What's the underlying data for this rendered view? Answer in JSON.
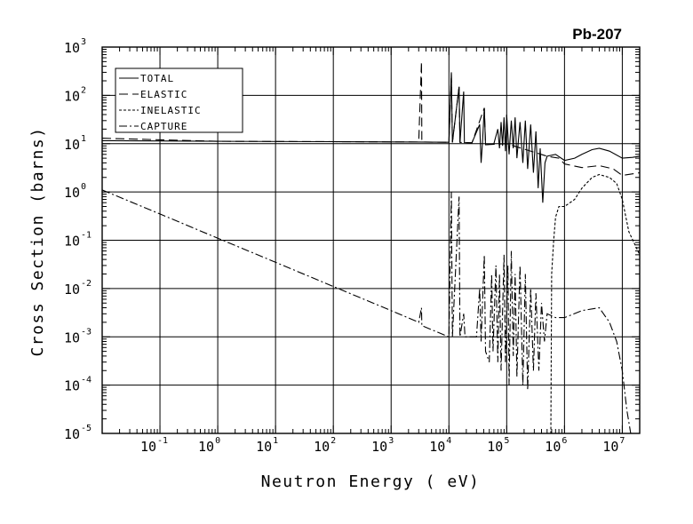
{
  "chart_data": {
    "type": "line",
    "title": "Pb-207",
    "xlabel": "Neutron Energy ( eV)",
    "ylabel": "Cross Section (barns)",
    "x_scale": "log",
    "y_scale": "log",
    "xlim": [
      0.01,
      20000000
    ],
    "ylim": [
      1e-05,
      1000
    ],
    "grid": true,
    "legend_position": "top-left",
    "x_ticks": [
      {
        "value": 0.1,
        "base": "10",
        "exp": "-1"
      },
      {
        "value": 1,
        "base": "10",
        "exp": "0"
      },
      {
        "value": 10,
        "base": "10",
        "exp": "1"
      },
      {
        "value": 100,
        "base": "10",
        "exp": "2"
      },
      {
        "value": 1000,
        "base": "10",
        "exp": "3"
      },
      {
        "value": 10000,
        "base": "10",
        "exp": "4"
      },
      {
        "value": 100000,
        "base": "10",
        "exp": "5"
      },
      {
        "value": 1000000,
        "base": "10",
        "exp": "6"
      },
      {
        "value": 10000000,
        "base": "10",
        "exp": "7"
      }
    ],
    "y_ticks": [
      {
        "value": 1e-05,
        "base": "10",
        "exp": "-5"
      },
      {
        "value": 0.0001,
        "base": "10",
        "exp": "-4"
      },
      {
        "value": 0.001,
        "base": "10",
        "exp": "-3"
      },
      {
        "value": 0.01,
        "base": "10",
        "exp": "-2"
      },
      {
        "value": 0.1,
        "base": "10",
        "exp": "-1"
      },
      {
        "value": 1,
        "base": "10",
        "exp": "0"
      },
      {
        "value": 10,
        "base": "10",
        "exp": "1"
      },
      {
        "value": 100,
        "base": "10",
        "exp": "2"
      },
      {
        "value": 1000,
        "base": "10",
        "exp": "3"
      }
    ],
    "series": [
      {
        "name": "TOTAL",
        "dash": "solid",
        "points": [
          [
            0.01,
            11.5
          ],
          [
            1,
            11.2
          ],
          [
            100,
            11.0
          ],
          [
            3000,
            10.8
          ],
          [
            10000,
            10.7
          ],
          [
            11000,
            300
          ],
          [
            11500,
            10.6
          ],
          [
            15000,
            150
          ],
          [
            15500,
            10.6
          ],
          [
            18000,
            120
          ],
          [
            18500,
            10.5
          ],
          [
            25000,
            10.4
          ],
          [
            34000,
            25
          ],
          [
            36000,
            4
          ],
          [
            38000,
            10.2
          ],
          [
            41000,
            55
          ],
          [
            43000,
            9.5
          ],
          [
            60000,
            10.0
          ],
          [
            70000,
            20
          ],
          [
            75000,
            8
          ],
          [
            80000,
            28
          ],
          [
            85000,
            9
          ],
          [
            90000,
            35
          ],
          [
            95000,
            7
          ],
          [
            100000,
            40
          ],
          [
            110000,
            6
          ],
          [
            120000,
            30
          ],
          [
            130000,
            8
          ],
          [
            140000,
            35
          ],
          [
            150000,
            5
          ],
          [
            170000,
            28
          ],
          [
            190000,
            4
          ],
          [
            210000,
            30
          ],
          [
            230000,
            3
          ],
          [
            260000,
            25
          ],
          [
            290000,
            2.5
          ],
          [
            320000,
            18
          ],
          [
            350000,
            1.2
          ],
          [
            380000,
            8
          ],
          [
            420000,
            0.6
          ],
          [
            460000,
            4
          ],
          [
            500000,
            5.5
          ],
          [
            700000,
            6.0
          ],
          [
            1000000,
            4.5
          ],
          [
            1500000,
            5.0
          ],
          [
            2000000,
            6.0
          ],
          [
            3000000,
            7.5
          ],
          [
            4000000,
            8.0
          ],
          [
            6000000,
            7.0
          ],
          [
            10000000,
            5.0
          ],
          [
            15000000,
            5.2
          ],
          [
            20000000,
            5.5
          ]
        ]
      },
      {
        "name": "ELASTIC",
        "dash": "long-dash",
        "points": [
          [
            0.01,
            13.0
          ],
          [
            0.1,
            12.0
          ],
          [
            1,
            11.2
          ],
          [
            100,
            11.0
          ],
          [
            3000,
            10.8
          ],
          [
            3350,
            500
          ],
          [
            3400,
            10.8
          ],
          [
            10000,
            10.7
          ],
          [
            11000,
            280
          ],
          [
            11500,
            10.6
          ],
          [
            15000,
            150
          ],
          [
            15500,
            10.6
          ],
          [
            25000,
            10.4
          ],
          [
            41000,
            55
          ],
          [
            43000,
            9.5
          ],
          [
            100000,
            10
          ],
          [
            500000,
            5.5
          ],
          [
            800000,
            5.0
          ],
          [
            1000000,
            3.8
          ],
          [
            2000000,
            3.2
          ],
          [
            4000000,
            3.5
          ],
          [
            7000000,
            3.0
          ],
          [
            10000000,
            2.2
          ],
          [
            20000000,
            2.5
          ]
        ]
      },
      {
        "name": "INELASTIC",
        "dash": "short-dash",
        "points": [
          [
            570000,
            1e-05
          ],
          [
            580000,
            1e-05
          ],
          [
            600000,
            0.02
          ],
          [
            650000,
            0.1
          ],
          [
            700000,
            0.3
          ],
          [
            800000,
            0.5
          ],
          [
            1000000,
            0.5
          ],
          [
            1500000,
            0.7
          ],
          [
            2000000,
            1.2
          ],
          [
            3000000,
            2.0
          ],
          [
            4000000,
            2.3
          ],
          [
            6000000,
            2.0
          ],
          [
            8000000,
            1.5
          ],
          [
            10000000,
            0.7
          ],
          [
            13000000,
            0.15
          ],
          [
            20000000,
            0.05
          ]
        ]
      },
      {
        "name": "CAPTURE",
        "dash": "dash-dot",
        "points": [
          [
            0.01,
            1.1
          ],
          [
            0.1,
            0.35
          ],
          [
            1,
            0.11
          ],
          [
            10,
            0.035
          ],
          [
            100,
            0.011
          ],
          [
            1000,
            0.0035
          ],
          [
            3000,
            0.002
          ],
          [
            3350,
            0.004
          ],
          [
            3400,
            0.0017
          ],
          [
            10000,
            0.001
          ],
          [
            11000,
            1.0
          ],
          [
            11500,
            0.001
          ],
          [
            15000,
            0.8
          ],
          [
            15500,
            0.001
          ],
          [
            18000,
            0.003
          ],
          [
            19000,
            0.001
          ],
          [
            30000,
            0.001
          ],
          [
            34000,
            0.01
          ],
          [
            36000,
            0.0008
          ],
          [
            41000,
            0.05
          ],
          [
            43000,
            0.0005
          ],
          [
            50000,
            0.0003
          ],
          [
            55000,
            0.02
          ],
          [
            58000,
            0.0005
          ],
          [
            65000,
            0.03
          ],
          [
            70000,
            0.0003
          ],
          [
            75000,
            0.02
          ],
          [
            80000,
            0.0002
          ],
          [
            90000,
            0.05
          ],
          [
            95000,
            0.0003
          ],
          [
            105000,
            0.03
          ],
          [
            110000,
            0.0001
          ],
          [
            120000,
            0.06
          ],
          [
            130000,
            0.0004
          ],
          [
            140000,
            0.02
          ],
          [
            150000,
            0.00015
          ],
          [
            170000,
            0.03
          ],
          [
            190000,
            0.0001
          ],
          [
            210000,
            0.02
          ],
          [
            230000,
            8e-05
          ],
          [
            260000,
            0.01
          ],
          [
            290000,
            0.0002
          ],
          [
            320000,
            0.008
          ],
          [
            360000,
            0.0002
          ],
          [
            400000,
            0.005
          ],
          [
            450000,
            0.0008
          ],
          [
            500000,
            0.003
          ],
          [
            700000,
            0.0025
          ],
          [
            1000000,
            0.0025
          ],
          [
            2000000,
            0.0035
          ],
          [
            4000000,
            0.004
          ],
          [
            6000000,
            0.002
          ],
          [
            8000000,
            0.0008
          ],
          [
            10000000,
            0.0002
          ],
          [
            12000000,
            3e-05
          ],
          [
            14000000,
            1e-05
          ]
        ]
      }
    ]
  }
}
